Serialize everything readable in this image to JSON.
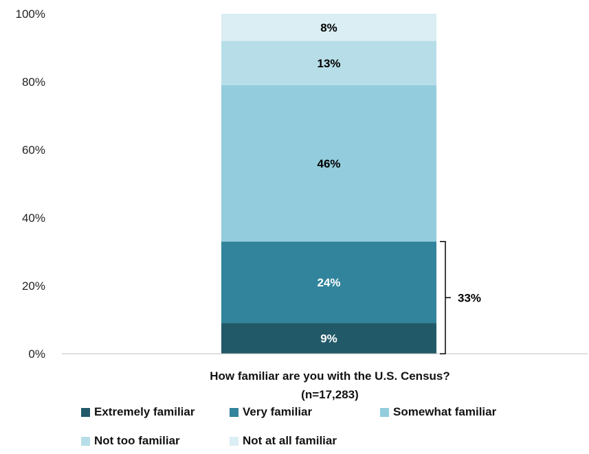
{
  "chart_data": {
    "type": "bar",
    "stacked": true,
    "categories": [
      "How familiar are you with the U.S. Census?",
      "(n=17,283)"
    ],
    "category_title_lines": [
      "How familiar are you with the U.S. Census?",
      "(n=17,283)"
    ],
    "ylim": [
      0,
      100
    ],
    "yticks": [
      "0%",
      "20%",
      "40%",
      "60%",
      "80%",
      "100%"
    ],
    "series": [
      {
        "name": "Extremely familiar",
        "value": 9,
        "label": "9%",
        "color": "#215968",
        "label_color": "#ffffff"
      },
      {
        "name": "Very familiar",
        "value": 24,
        "label": "24%",
        "color": "#31849b",
        "label_color": "#ffffff"
      },
      {
        "name": "Somewhat familiar",
        "value": 46,
        "label": "46%",
        "color": "#93cddd",
        "label_color": "#000000"
      },
      {
        "name": "Not too familiar",
        "value": 13,
        "label": "13%",
        "color": "#b7dee8",
        "label_color": "#000000"
      },
      {
        "name": "Not at all familiar",
        "value": 8,
        "label": "8%",
        "color": "#daeef3",
        "label_color": "#000000"
      }
    ],
    "bracket": {
      "value": 33,
      "label": "33%",
      "from_series": 0,
      "to_series": 1
    },
    "legend_position": "bottom",
    "grid": false
  }
}
